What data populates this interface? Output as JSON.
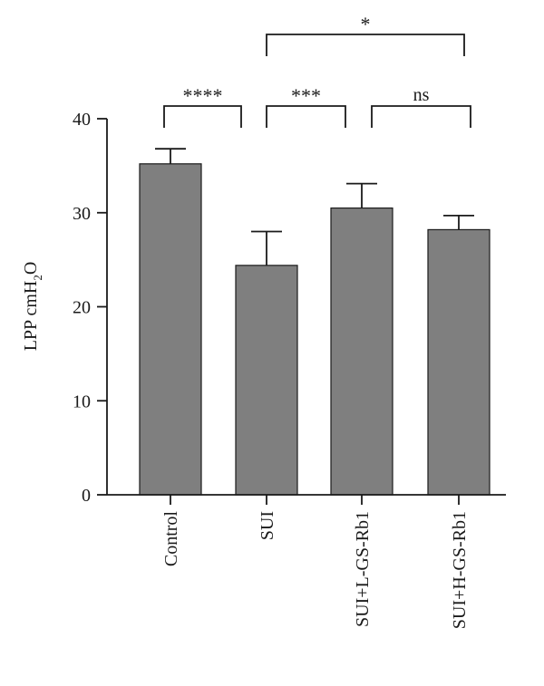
{
  "chart_data": {
    "type": "bar",
    "categories": [
      "Control",
      "SUI",
      "SUI+L-GS-Rb1",
      "SUI+H-GS-Rb1"
    ],
    "values": [
      35.2,
      24.4,
      30.5,
      28.2
    ],
    "errors": [
      1.6,
      3.6,
      2.6,
      1.5
    ],
    "ylabel_parts": {
      "main": "LPP cmH",
      "sub": "2",
      "tail": "O"
    },
    "yticks": [
      0,
      10,
      20,
      30,
      40
    ],
    "ylim": [
      0,
      40
    ],
    "bar_color": "#7f7f7f",
    "significance": [
      {
        "from": 0,
        "to": 1,
        "label": "****"
      },
      {
        "from": 1,
        "to": 2,
        "label": "***"
      },
      {
        "from": 2,
        "to": 3,
        "label": "ns"
      },
      {
        "from": 1,
        "to": 3,
        "label": "*"
      }
    ]
  }
}
